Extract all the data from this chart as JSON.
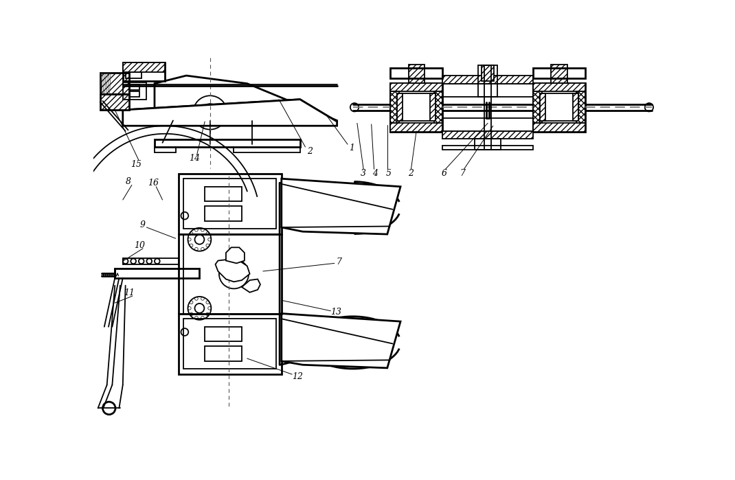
{
  "bg_color": "#ffffff",
  "line_color": "#000000",
  "fig_width": 10.7,
  "fig_height": 6.99,
  "dpi": 100
}
